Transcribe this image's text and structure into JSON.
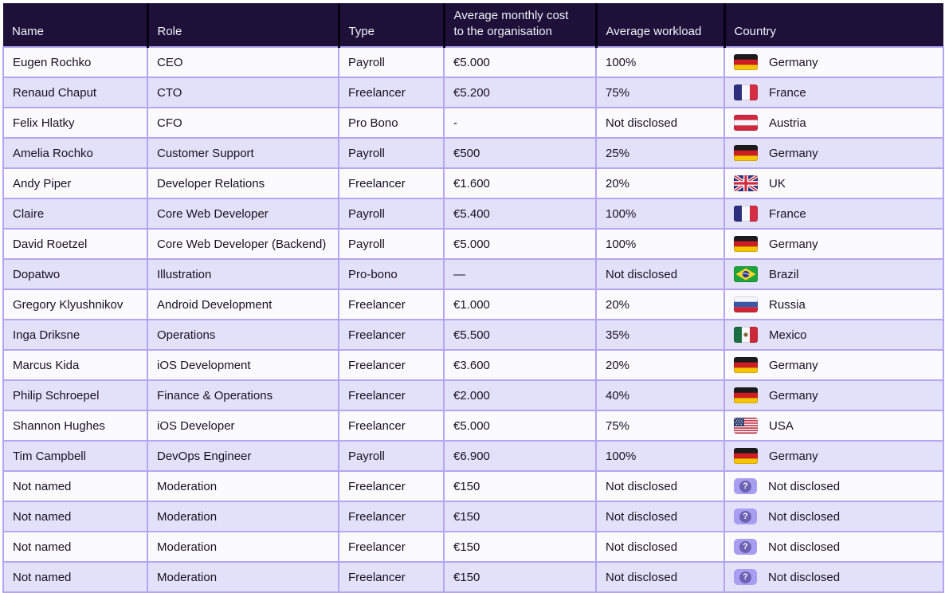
{
  "colors": {
    "header_background": "#1d1139",
    "header_text": "#f2effc",
    "grid_border": "#b4a6f2",
    "row_odd": "#fbfaff",
    "row_even": "#e3e0f9",
    "body_text": "#17121f",
    "unknown_badge_background": "#a89ef1",
    "unknown_badge_circle": "#6a62b2"
  },
  "icons": {
    "unknown_country_glyph": "?"
  },
  "table": {
    "columns": [
      {
        "key": "name",
        "label": "Name"
      },
      {
        "key": "role",
        "label": "Role"
      },
      {
        "key": "type",
        "label": "Type"
      },
      {
        "key": "cost",
        "label": "Average monthly cost\nto the organisation"
      },
      {
        "key": "workload",
        "label": "Average workload"
      },
      {
        "key": "country",
        "label": "Country"
      }
    ],
    "rows": [
      {
        "name": "Eugen Rochko",
        "role": "CEO",
        "type": "Payroll",
        "cost": "€5.000",
        "workload": "100%",
        "country": "Germany",
        "flag": "germany"
      },
      {
        "name": "Renaud Chaput",
        "role": "CTO",
        "type": "Freelancer",
        "cost": "€5.200",
        "workload": "75%",
        "country": "France",
        "flag": "france"
      },
      {
        "name": "Felix Hlatky",
        "role": "CFO",
        "type": "Pro Bono",
        "cost": "-",
        "workload": "Not disclosed",
        "country": "Austria",
        "flag": "austria"
      },
      {
        "name": "Amelia Rochko",
        "role": "Customer Support",
        "type": "Payroll",
        "cost": "€500",
        "workload": "25%",
        "country": "Germany",
        "flag": "germany"
      },
      {
        "name": "Andy Piper",
        "role": "Developer Relations",
        "type": "Freelancer",
        "cost": "€1.600",
        "workload": "20%",
        "country": "UK",
        "flag": "uk"
      },
      {
        "name": "Claire",
        "role": "Core Web Developer",
        "type": "Payroll",
        "cost": "€5.400",
        "workload": "100%",
        "country": "France",
        "flag": "france"
      },
      {
        "name": "David Roetzel",
        "role": "Core Web Developer (Backend)",
        "type": "Payroll",
        "cost": "€5.000",
        "workload": "100%",
        "country": "Germany",
        "flag": "germany"
      },
      {
        "name": "Dopatwo",
        "role": "Illustration",
        "type": "Pro-bono",
        "cost": "—",
        "workload": "Not disclosed",
        "country": "Brazil",
        "flag": "brazil"
      },
      {
        "name": "Gregory Klyushnikov",
        "role": "Android Development",
        "type": "Freelancer",
        "cost": "€1.000",
        "workload": "20%",
        "country": "Russia",
        "flag": "russia"
      },
      {
        "name": "Inga Driksne",
        "role": "Operations",
        "type": "Freelancer",
        "cost": "€5.500",
        "workload": "35%",
        "country": "Mexico",
        "flag": "mexico"
      },
      {
        "name": "Marcus Kida",
        "role": "iOS Development",
        "type": "Freelancer",
        "cost": "€3.600",
        "workload": "20%",
        "country": "Germany",
        "flag": "germany"
      },
      {
        "name": "Philip Schroepel",
        "role": "Finance & Operations",
        "type": "Freelancer",
        "cost": "€2.000",
        "workload": "40%",
        "country": "Germany",
        "flag": "germany"
      },
      {
        "name": "Shannon Hughes",
        "role": "iOS Developer",
        "type": "Freelancer",
        "cost": "€5.000",
        "workload": "75%",
        "country": "USA",
        "flag": "usa"
      },
      {
        "name": "Tim Campbell",
        "role": "DevOps Engineer",
        "type": "Payroll",
        "cost": "€6.900",
        "workload": "100%",
        "country": "Germany",
        "flag": "germany"
      },
      {
        "name": "Not named",
        "role": "Moderation",
        "type": "Freelancer",
        "cost": "€150",
        "workload": "Not disclosed",
        "country": "Not disclosed",
        "flag": "unknown"
      },
      {
        "name": "Not named",
        "role": "Moderation",
        "type": "Freelancer",
        "cost": "€150",
        "workload": "Not disclosed",
        "country": "Not disclosed",
        "flag": "unknown"
      },
      {
        "name": "Not named",
        "role": "Moderation",
        "type": "Freelancer",
        "cost": "€150",
        "workload": "Not disclosed",
        "country": "Not disclosed",
        "flag": "unknown"
      },
      {
        "name": "Not named",
        "role": "Moderation",
        "type": "Freelancer",
        "cost": "€150",
        "workload": "Not disclosed",
        "country": "Not disclosed",
        "flag": "unknown"
      }
    ]
  }
}
